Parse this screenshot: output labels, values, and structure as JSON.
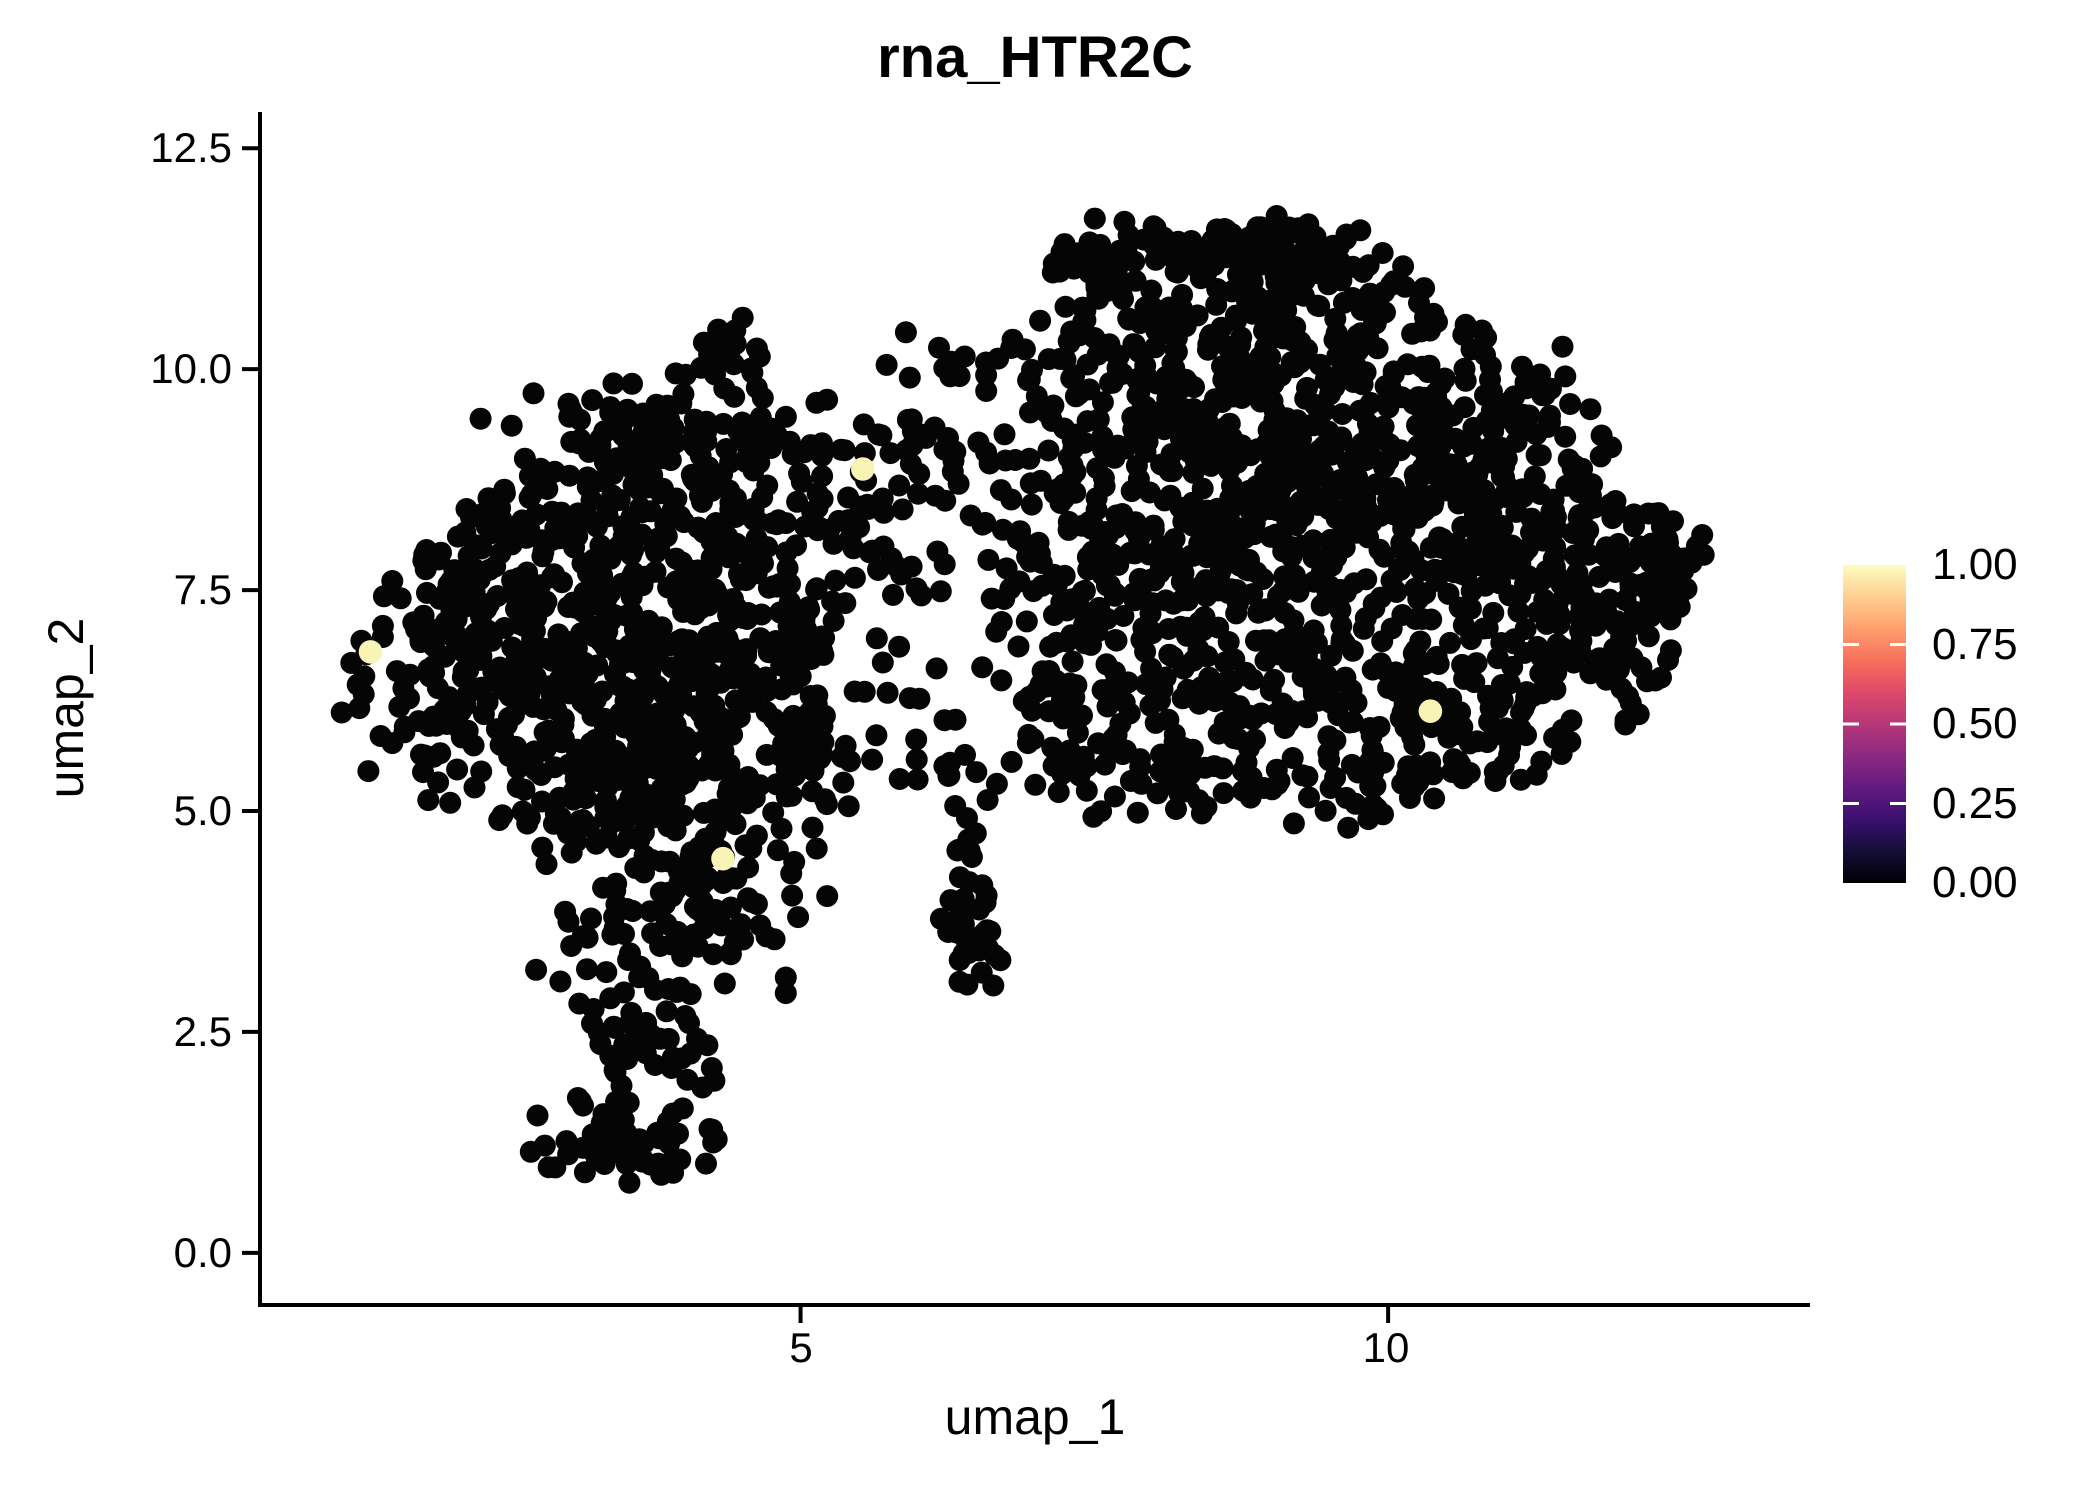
{
  "title": "rna_HTR2C",
  "axes": {
    "x": {
      "label": "umap_1",
      "tick_labels": [
        "5",
        "10"
      ]
    },
    "y": {
      "label": "umap_2",
      "tick_labels": [
        "12.5",
        "10.0",
        "7.5",
        "5.0",
        "2.5",
        "0.0"
      ]
    }
  },
  "colorbar_labels": [
    "1.00",
    "0.75",
    "0.50",
    "0.25",
    "0.00"
  ],
  "chart_data": {
    "type": "scatter",
    "title": "rna_HTR2C",
    "xlabel": "umap_1",
    "ylabel": "umap_2",
    "xlim": [
      0.4,
      13.59
    ],
    "ylim": [
      -0.59,
      12.91
    ],
    "x_ticks": [
      5,
      10
    ],
    "x_tick_labels": [
      "5",
      "10"
    ],
    "y_ticks": [
      12.5,
      10.0,
      7.5,
      5.0,
      2.5,
      0.0
    ],
    "y_tick_labels": [
      "12.5",
      "10.0",
      "7.5",
      "5.0",
      "2.5",
      "0.0"
    ],
    "grid": false,
    "legend_position": "right",
    "point_radius_px": 11,
    "colors": {
      "zero_expression": "#050505",
      "max_expression": "#F8F4B6",
      "axis": "#000000",
      "background": "#ffffff"
    },
    "colorbar": {
      "tick_labels": [
        "1.00",
        "0.75",
        "0.50",
        "0.25",
        "0.00"
      ],
      "tick_values": [
        1.0,
        0.75,
        0.5,
        0.25,
        0.0
      ],
      "inner_tick_values": [
        0.75,
        0.5,
        0.25
      ],
      "colormap": "magma",
      "stops": [
        {
          "offset": 0.0,
          "color": "#000004"
        },
        {
          "offset": 0.1,
          "color": "#140e36"
        },
        {
          "offset": 0.2,
          "color": "#3b0f70"
        },
        {
          "offset": 0.3,
          "color": "#641a80"
        },
        {
          "offset": 0.4,
          "color": "#8c2981"
        },
        {
          "offset": 0.5,
          "color": "#b73779"
        },
        {
          "offset": 0.6,
          "color": "#de4968"
        },
        {
          "offset": 0.7,
          "color": "#f7705c"
        },
        {
          "offset": 0.8,
          "color": "#fe9f6d"
        },
        {
          "offset": 0.9,
          "color": "#fecf92"
        },
        {
          "offset": 1.0,
          "color": "#fcfdbf"
        }
      ]
    },
    "expression_points": [
      {
        "x": 1.34,
        "y": 6.8,
        "value": 1.0
      },
      {
        "x": 4.34,
        "y": 4.46,
        "value": 1.0
      },
      {
        "x": 5.53,
        "y": 8.87,
        "value": 1.0
      },
      {
        "x": 10.36,
        "y": 6.13,
        "value": 1.0
      }
    ],
    "seed": 1337,
    "zero_expression_clusters": [
      {
        "n": 130,
        "cx": 3.3,
        "cy": 6.35,
        "sx": 0.72,
        "sy": 0.72
      },
      {
        "n": 110,
        "cx": 4.1,
        "cy": 5.95,
        "sx": 0.62,
        "sy": 0.65
      },
      {
        "n": 100,
        "cx": 3.6,
        "cy": 7.2,
        "sx": 0.75,
        "sy": 0.55
      },
      {
        "n": 85,
        "cx": 2.65,
        "cy": 6.05,
        "sx": 0.55,
        "sy": 0.7
      },
      {
        "n": 75,
        "cx": 4.5,
        "cy": 6.9,
        "sx": 0.52,
        "sy": 0.6
      },
      {
        "n": 85,
        "cx": 3.4,
        "cy": 5.15,
        "sx": 0.58,
        "sy": 0.5
      },
      {
        "n": 65,
        "cx": 4.35,
        "cy": 4.45,
        "sx": 0.45,
        "sy": 0.5
      },
      {
        "n": 65,
        "cx": 3.8,
        "cy": 3.55,
        "sx": 0.5,
        "sy": 0.42
      },
      {
        "n": 22,
        "cx": 3.45,
        "cy": 2.35,
        "sx": 0.22,
        "sy": 0.32
      },
      {
        "n": 16,
        "cx": 3.95,
        "cy": 2.15,
        "sx": 0.18,
        "sy": 0.28
      },
      {
        "n": 32,
        "cx": 3.25,
        "cy": 1.35,
        "sx": 0.28,
        "sy": 0.24
      },
      {
        "n": 28,
        "cx": 3.85,
        "cy": 1.25,
        "sx": 0.28,
        "sy": 0.22
      },
      {
        "n": 75,
        "cx": 3.1,
        "cy": 8.2,
        "sx": 0.65,
        "sy": 0.48
      },
      {
        "n": 70,
        "cx": 4.2,
        "cy": 8.55,
        "sx": 0.58,
        "sy": 0.5
      },
      {
        "n": 50,
        "cx": 3.35,
        "cy": 9.15,
        "sx": 0.5,
        "sy": 0.38
      },
      {
        "n": 40,
        "cx": 4.5,
        "cy": 9.45,
        "sx": 0.42,
        "sy": 0.38
      },
      {
        "n": 22,
        "cx": 4.4,
        "cy": 10.15,
        "sx": 0.22,
        "sy": 0.2
      },
      {
        "n": 50,
        "cx": 1.8,
        "cy": 6.6,
        "sx": 0.38,
        "sy": 0.75
      },
      {
        "n": 30,
        "cx": 2.1,
        "cy": 7.6,
        "sx": 0.32,
        "sy": 0.42
      },
      {
        "n": 28,
        "cx": 5.0,
        "cy": 5.6,
        "sx": 0.35,
        "sy": 0.5
      },
      {
        "n": 38,
        "cx": 5.0,
        "cy": 7.8,
        "sx": 0.38,
        "sy": 0.55
      },
      {
        "n": 22,
        "cx": 5.3,
        "cy": 8.8,
        "sx": 0.33,
        "sy": 0.42
      },
      {
        "n": 26,
        "cx": 6.0,
        "cy": 9.3,
        "sx": 0.48,
        "sy": 0.5
      },
      {
        "n": 22,
        "cx": 6.6,
        "cy": 8.6,
        "sx": 0.42,
        "sy": 0.55
      },
      {
        "n": 18,
        "cx": 5.9,
        "cy": 7.6,
        "sx": 0.38,
        "sy": 0.48
      },
      {
        "n": 10,
        "cx": 6.4,
        "cy": 10.2,
        "sx": 0.28,
        "sy": 0.18
      },
      {
        "n": 12,
        "cx": 5.6,
        "cy": 6.3,
        "sx": 0.32,
        "sy": 0.45
      },
      {
        "n": 4,
        "cx": 6.05,
        "cy": 5.45,
        "sx": 0.12,
        "sy": 0.25
      },
      {
        "n": 38,
        "cx": 6.45,
        "cy": 3.6,
        "sx": 0.14,
        "sy": 0.3
      },
      {
        "n": 8,
        "cx": 6.42,
        "cy": 4.5,
        "sx": 0.07,
        "sy": 0.28
      },
      {
        "n": 7,
        "cx": 6.4,
        "cy": 5.45,
        "sx": 0.1,
        "sy": 0.3
      },
      {
        "n": 85,
        "cx": 8.7,
        "cy": 11.35,
        "sx": 0.55,
        "sy": 0.22
      },
      {
        "n": 45,
        "cx": 9.45,
        "cy": 11.05,
        "sx": 0.38,
        "sy": 0.28
      },
      {
        "n": 42,
        "cx": 7.95,
        "cy": 10.8,
        "sx": 0.42,
        "sy": 0.35
      },
      {
        "n": 26,
        "cx": 7.4,
        "cy": 11.1,
        "sx": 0.28,
        "sy": 0.28
      },
      {
        "n": 115,
        "cx": 8.8,
        "cy": 10.1,
        "sx": 0.78,
        "sy": 0.48
      },
      {
        "n": 125,
        "cx": 9.6,
        "cy": 9.3,
        "sx": 0.85,
        "sy": 0.55
      },
      {
        "n": 115,
        "cx": 8.5,
        "cy": 8.9,
        "sx": 0.78,
        "sy": 0.55
      },
      {
        "n": 105,
        "cx": 9.9,
        "cy": 8.3,
        "sx": 0.75,
        "sy": 0.52
      },
      {
        "n": 95,
        "cx": 8.1,
        "cy": 8.0,
        "sx": 0.68,
        "sy": 0.55
      },
      {
        "n": 85,
        "cx": 9.0,
        "cy": 7.3,
        "sx": 0.75,
        "sy": 0.48
      },
      {
        "n": 75,
        "cx": 10.6,
        "cy": 9.0,
        "sx": 0.58,
        "sy": 0.55
      },
      {
        "n": 65,
        "cx": 10.9,
        "cy": 7.8,
        "sx": 0.52,
        "sy": 0.55
      },
      {
        "n": 55,
        "cx": 7.6,
        "cy": 9.6,
        "sx": 0.48,
        "sy": 0.48
      },
      {
        "n": 65,
        "cx": 8.3,
        "cy": 6.4,
        "sx": 0.65,
        "sy": 0.45
      },
      {
        "n": 55,
        "cx": 9.5,
        "cy": 6.3,
        "sx": 0.65,
        "sy": 0.42
      },
      {
        "n": 45,
        "cx": 10.4,
        "cy": 6.1,
        "sx": 0.48,
        "sy": 0.35
      },
      {
        "n": 40,
        "cx": 11.3,
        "cy": 6.6,
        "sx": 0.38,
        "sy": 0.45
      },
      {
        "n": 50,
        "cx": 11.7,
        "cy": 7.5,
        "sx": 0.42,
        "sy": 0.48
      },
      {
        "n": 28,
        "cx": 12.2,
        "cy": 7.55,
        "sx": 0.2,
        "sy": 0.38
      },
      {
        "n": 32,
        "cx": 7.3,
        "cy": 6.6,
        "sx": 0.38,
        "sy": 0.55
      },
      {
        "n": 26,
        "cx": 7.2,
        "cy": 5.6,
        "sx": 0.33,
        "sy": 0.38
      },
      {
        "n": 32,
        "cx": 8.0,
        "cy": 5.4,
        "sx": 0.48,
        "sy": 0.32
      },
      {
        "n": 28,
        "cx": 9.0,
        "cy": 5.4,
        "sx": 0.48,
        "sy": 0.32
      },
      {
        "n": 22,
        "cx": 10.0,
        "cy": 5.4,
        "sx": 0.38,
        "sy": 0.28
      },
      {
        "n": 26,
        "cx": 10.9,
        "cy": 5.8,
        "sx": 0.38,
        "sy": 0.32
      },
      {
        "n": 36,
        "cx": 11.6,
        "cy": 8.4,
        "sx": 0.38,
        "sy": 0.38
      },
      {
        "n": 22,
        "cx": 10.3,
        "cy": 10.4,
        "sx": 0.42,
        "sy": 0.32
      },
      {
        "n": 18,
        "cx": 11.2,
        "cy": 9.6,
        "sx": 0.38,
        "sy": 0.32
      },
      {
        "n": 14,
        "cx": 12.3,
        "cy": 8.2,
        "sx": 0.18,
        "sy": 0.28
      },
      {
        "n": 18,
        "cx": 7.0,
        "cy": 7.6,
        "sx": 0.28,
        "sy": 0.48
      },
      {
        "n": 40,
        "cx": 11.9,
        "cy": 6.9,
        "sx": 0.33,
        "sy": 0.42
      }
    ]
  }
}
